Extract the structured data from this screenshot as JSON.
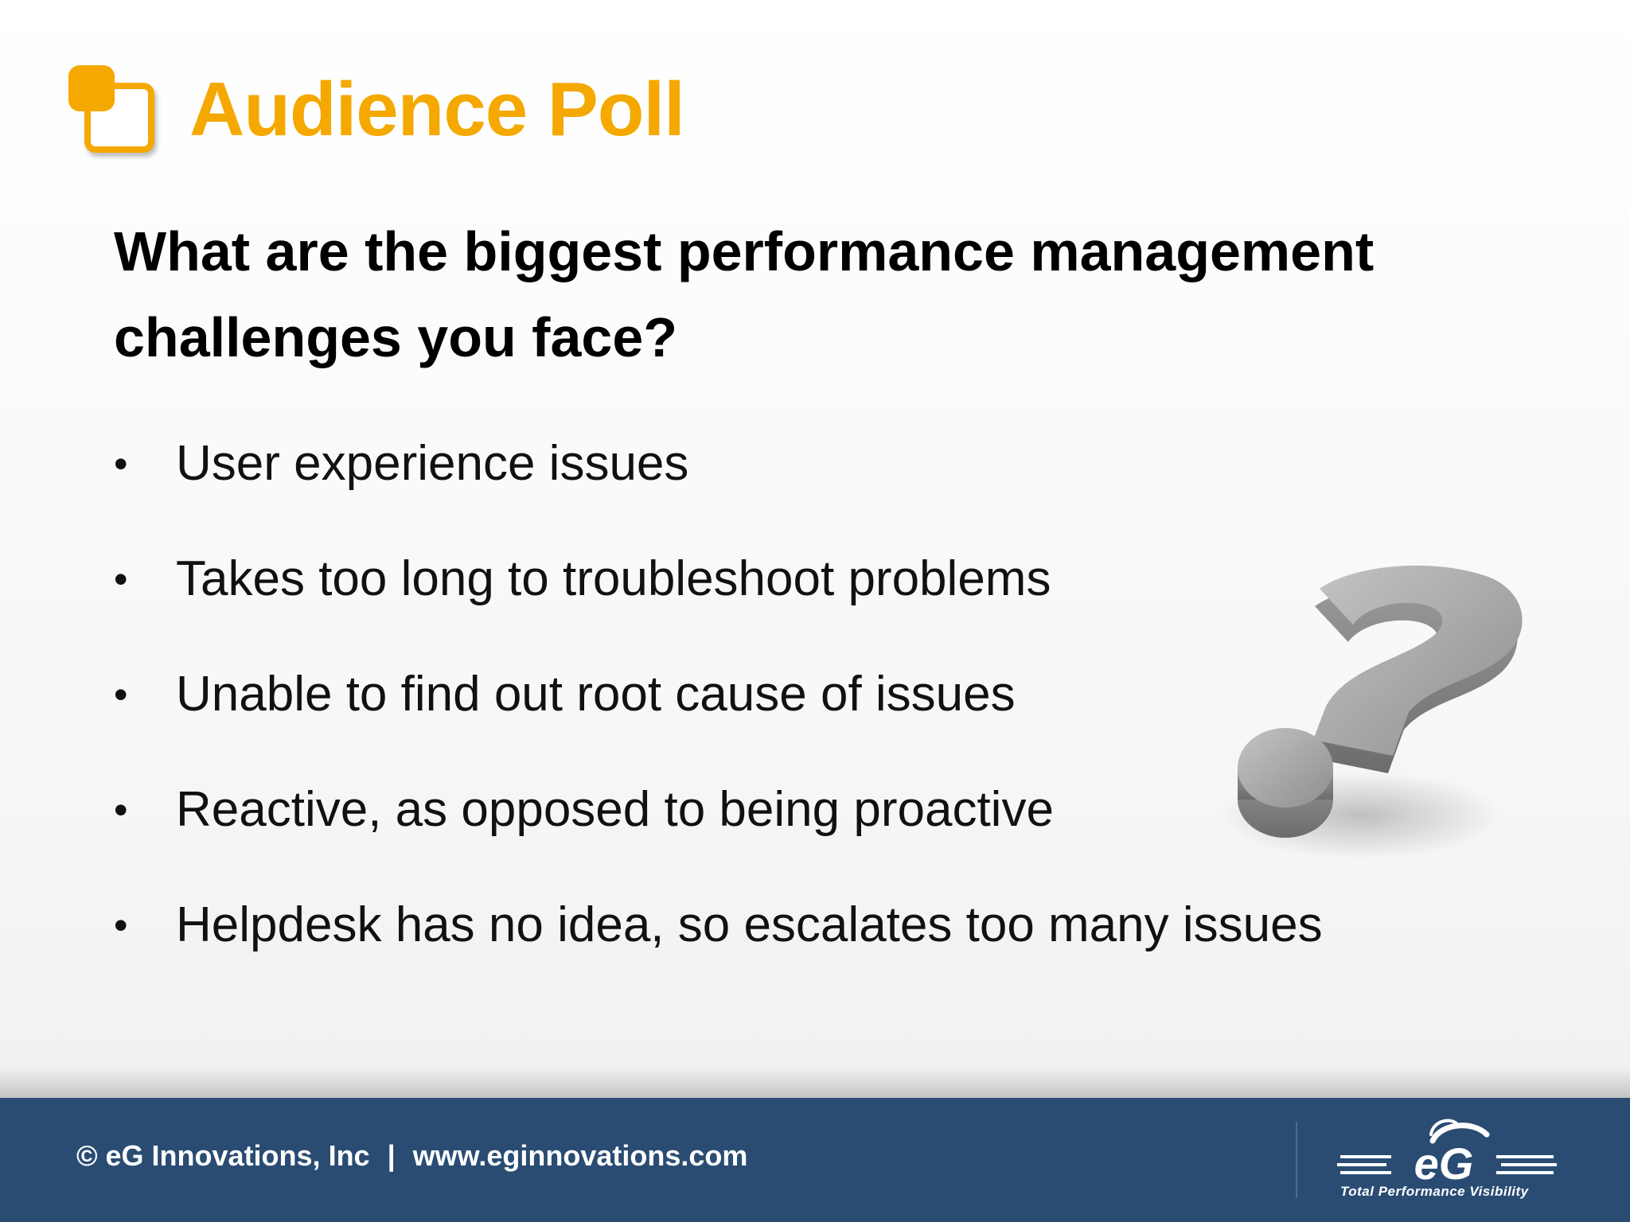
{
  "slide": {
    "title": "Audience Poll",
    "question": "What are the biggest performance management challenges you face?",
    "bullets": [
      {
        "marker": "•",
        "text": "User experience issues"
      },
      {
        "marker": "•",
        "text": "Takes too long to troubleshoot problems"
      },
      {
        "marker": "•",
        "text": "Unable to find out root cause of issues"
      },
      {
        "marker": "•",
        "text": "Reactive, as opposed to being proactive"
      },
      {
        "marker": "•",
        "text": "Helpdesk has no idea, so escalates too many issues"
      }
    ],
    "illustration": "question-mark-3d-icon"
  },
  "footer": {
    "copyright": "© eG Innovations, Inc",
    "separator": "|",
    "website": "www.eginnovations.com",
    "logo_text": "eG",
    "logo_tagline": "Total Performance Visibility"
  },
  "colors": {
    "accent": "#f5a800",
    "footer_bg": "#2a4c73",
    "text": "#000000"
  }
}
